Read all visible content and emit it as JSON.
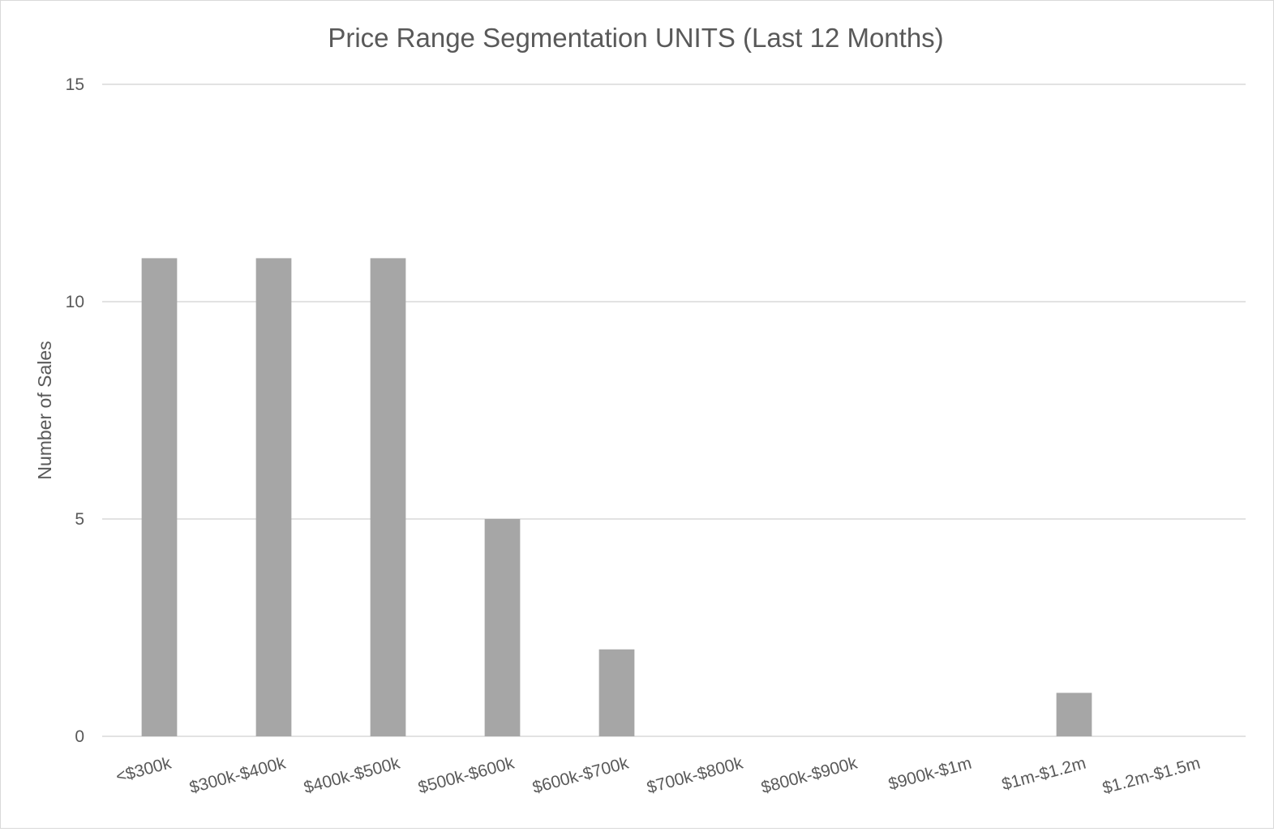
{
  "chart_data": {
    "type": "bar",
    "title": "Price Range Segmentation UNITS (Last 12 Months)",
    "xlabel": "",
    "ylabel": "Number of Sales",
    "categories": [
      "<$300k",
      "$300k-$400k",
      "$400k-$500k",
      "$500k-$600k",
      "$600k-$700k",
      "$700k-$800k",
      "$800k-$900k",
      "$900k-$1m",
      "$1m-$1.2m",
      "$1.2m-$1.5m"
    ],
    "values": [
      11,
      11,
      11,
      5,
      2,
      0,
      0,
      0,
      1,
      0
    ],
    "ylim": [
      0,
      15
    ],
    "yticks": [
      0,
      5,
      10,
      15
    ],
    "grid": true,
    "bar_color": "#a6a6a6"
  }
}
